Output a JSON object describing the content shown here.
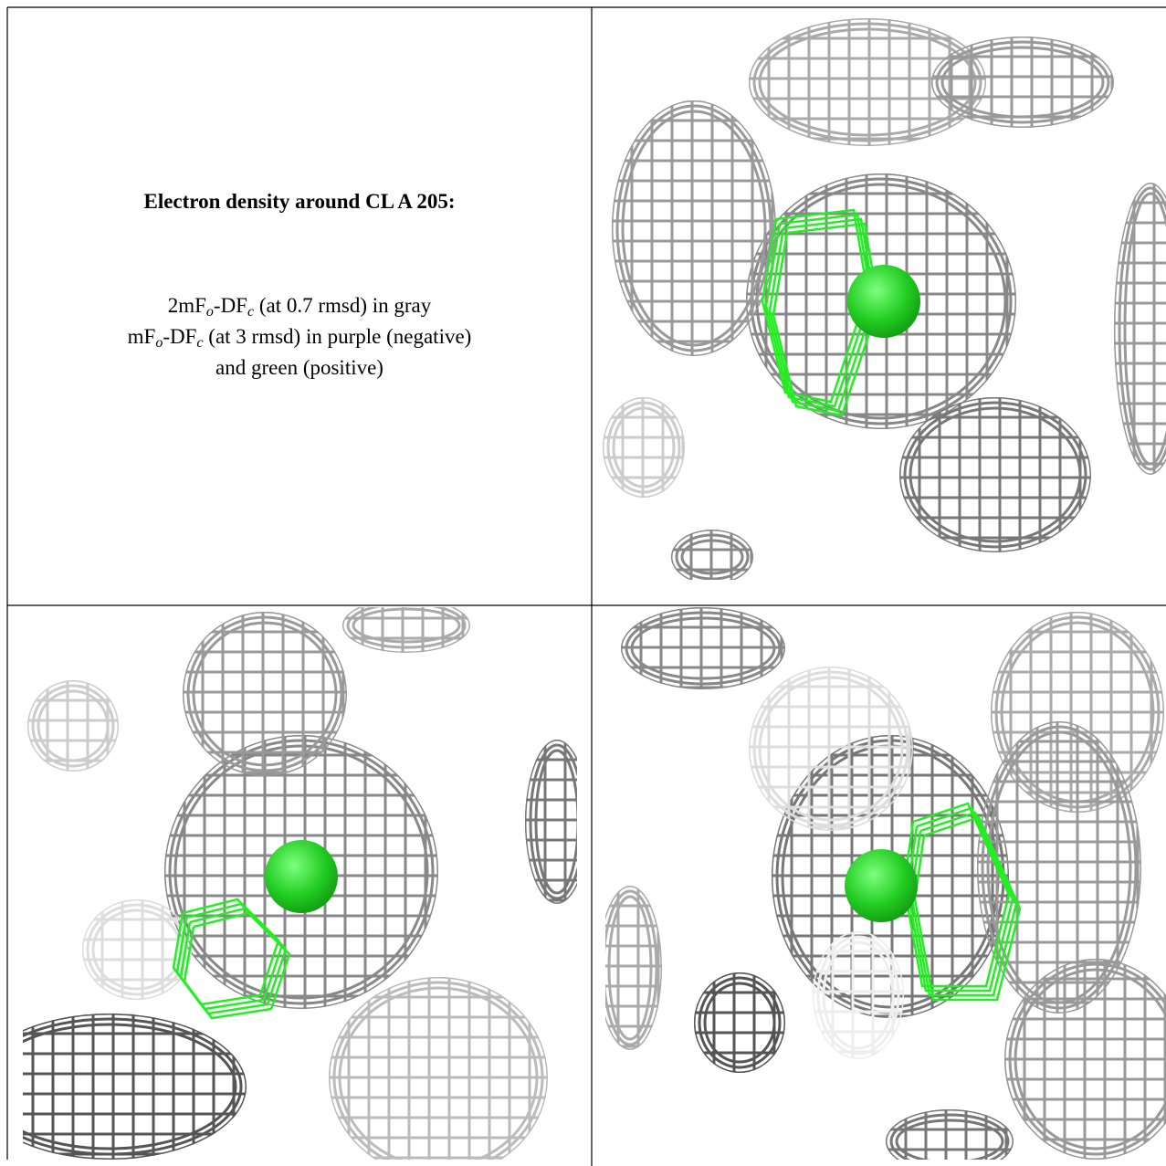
{
  "caption": {
    "title": "Electron density around CL A 205:",
    "lines": [
      [
        "2mF",
        "o",
        "-DF",
        "c",
        " (at 0.7 rmsd) in gray"
      ],
      [
        "mF",
        "o",
        "-DF",
        "c",
        " (at 3 rmsd) in purple (negative)"
      ],
      [
        "and green (positive)"
      ]
    ]
  }
}
